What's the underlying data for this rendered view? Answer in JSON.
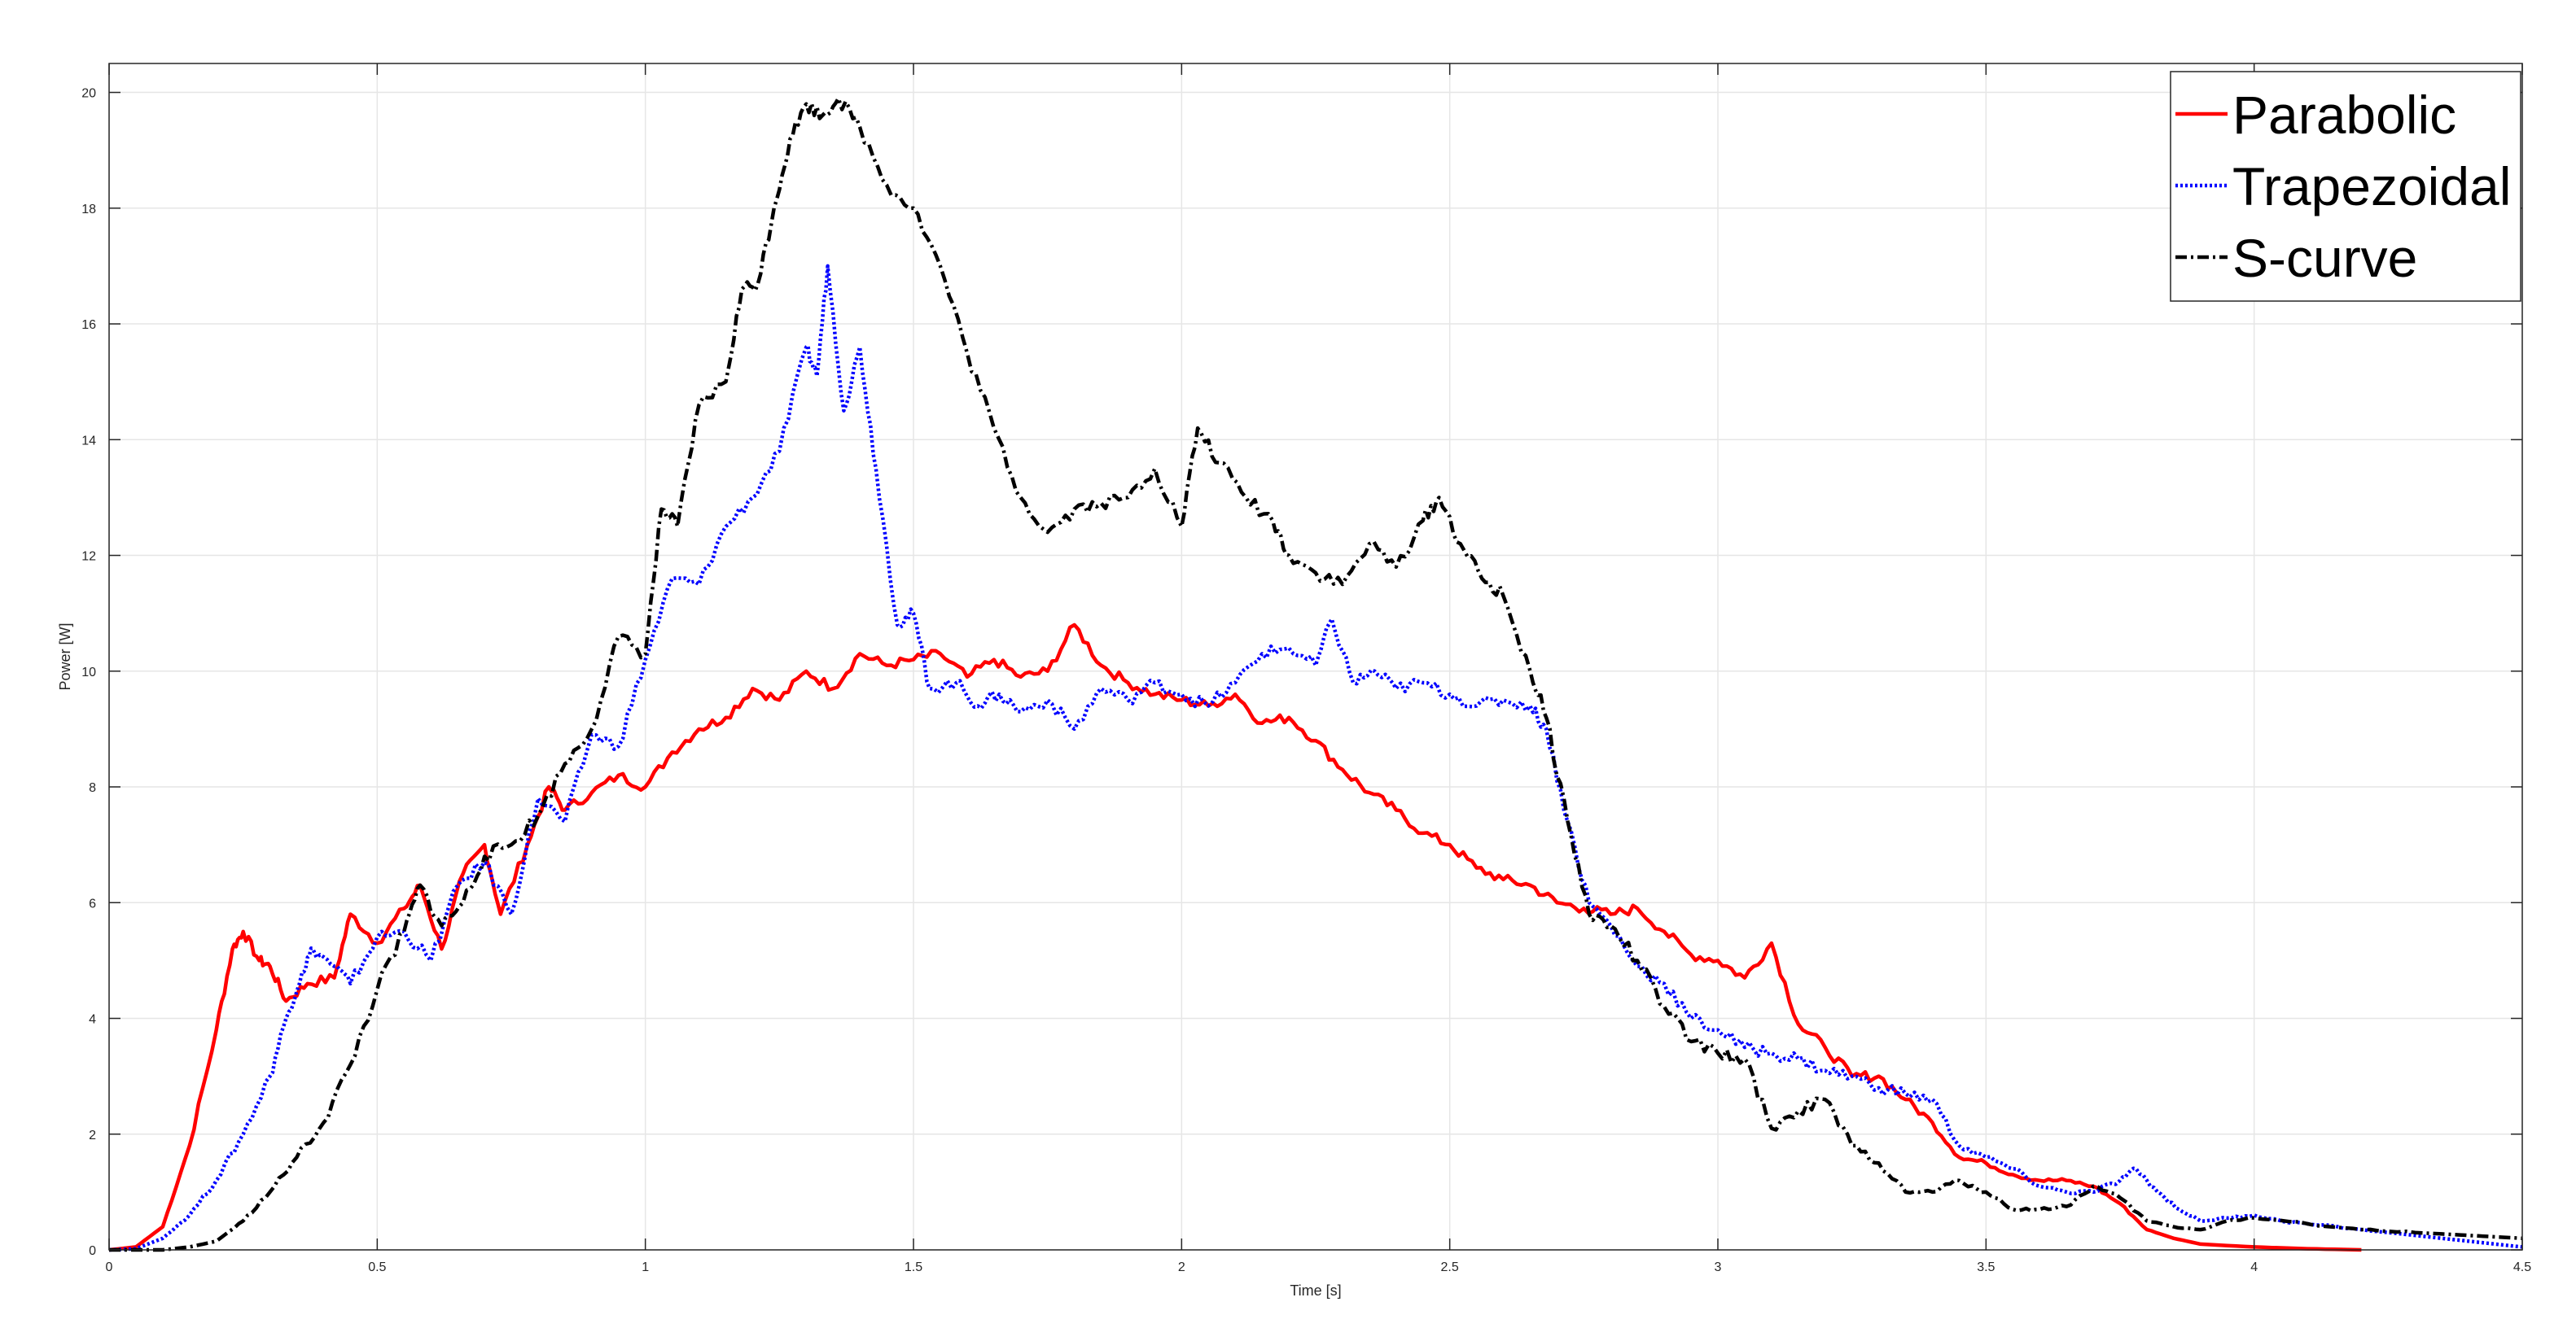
{
  "chart_data": {
    "type": "line",
    "title": "",
    "xlabel": "Time [s]",
    "ylabel": "Power [W]",
    "xlim": [
      0,
      4.5
    ],
    "ylim": [
      0,
      20.5
    ],
    "xticks": [
      "0",
      "0.5",
      "1",
      "1.5",
      "2",
      "2.5",
      "3",
      "3.5",
      "4",
      "4.5"
    ],
    "yticks": [
      "0",
      "2",
      "4",
      "6",
      "8",
      "10",
      "12",
      "14",
      "16",
      "18",
      "20"
    ],
    "grid": true,
    "legend_position": "top-right",
    "series": [
      {
        "name": "Parabolic",
        "color": "#ff0000",
        "style": "solid",
        "points": [
          [
            0,
            0
          ],
          [
            0.05,
            0.05
          ],
          [
            0.1,
            0.4
          ],
          [
            0.15,
            1.8
          ],
          [
            0.2,
            3.8
          ],
          [
            0.23,
            5.2
          ],
          [
            0.25,
            5.5
          ],
          [
            0.28,
            5.0
          ],
          [
            0.3,
            4.9
          ],
          [
            0.33,
            4.3
          ],
          [
            0.37,
            4.6
          ],
          [
            0.42,
            4.7
          ],
          [
            0.45,
            5.8
          ],
          [
            0.5,
            5.3
          ],
          [
            0.55,
            5.9
          ],
          [
            0.58,
            6.3
          ],
          [
            0.62,
            5.2
          ],
          [
            0.66,
            6.5
          ],
          [
            0.7,
            7.0
          ],
          [
            0.73,
            5.8
          ],
          [
            0.78,
            7.0
          ],
          [
            0.82,
            8.0
          ],
          [
            0.85,
            7.6
          ],
          [
            0.9,
            7.9
          ],
          [
            0.95,
            8.2
          ],
          [
            1.0,
            8.0
          ],
          [
            1.05,
            8.6
          ],
          [
            1.1,
            9.0
          ],
          [
            1.15,
            9.2
          ],
          [
            1.2,
            9.7
          ],
          [
            1.25,
            9.5
          ],
          [
            1.3,
            10.0
          ],
          [
            1.35,
            9.7
          ],
          [
            1.4,
            10.3
          ],
          [
            1.45,
            10.1
          ],
          [
            1.5,
            10.2
          ],
          [
            1.55,
            10.3
          ],
          [
            1.6,
            9.9
          ],
          [
            1.65,
            10.2
          ],
          [
            1.7,
            9.9
          ],
          [
            1.75,
            10.0
          ],
          [
            1.8,
            10.8
          ],
          [
            1.85,
            10.1
          ],
          [
            1.9,
            9.8
          ],
          [
            1.95,
            9.6
          ],
          [
            2.0,
            9.5
          ],
          [
            2.05,
            9.4
          ],
          [
            2.1,
            9.6
          ],
          [
            2.15,
            9.1
          ],
          [
            2.2,
            9.2
          ],
          [
            2.25,
            8.8
          ],
          [
            2.3,
            8.3
          ],
          [
            2.35,
            7.9
          ],
          [
            2.4,
            7.6
          ],
          [
            2.45,
            7.2
          ],
          [
            2.5,
            7.0
          ],
          [
            2.55,
            6.6
          ],
          [
            2.6,
            6.4
          ],
          [
            2.65,
            6.3
          ],
          [
            2.7,
            6.0
          ],
          [
            2.75,
            5.9
          ],
          [
            2.8,
            5.8
          ],
          [
            2.85,
            5.9
          ],
          [
            2.9,
            5.5
          ],
          [
            2.95,
            5.1
          ],
          [
            3.0,
            5.0
          ],
          [
            3.05,
            4.7
          ],
          [
            3.1,
            5.3
          ],
          [
            3.15,
            3.9
          ],
          [
            3.2,
            3.5
          ],
          [
            3.25,
            3.0
          ],
          [
            3.3,
            3.0
          ],
          [
            3.35,
            2.6
          ],
          [
            3.4,
            2.2
          ],
          [
            3.45,
            1.6
          ],
          [
            3.5,
            1.5
          ],
          [
            3.55,
            1.3
          ],
          [
            3.6,
            1.2
          ],
          [
            3.65,
            1.2
          ],
          [
            3.7,
            1.1
          ],
          [
            3.75,
            0.8
          ],
          [
            3.8,
            0.35
          ],
          [
            3.85,
            0.2
          ],
          [
            3.9,
            0.1
          ],
          [
            4.0,
            0.05
          ],
          [
            4.1,
            0.02
          ],
          [
            4.2,
            0.0
          ]
        ]
      },
      {
        "name": "Trapezoidal",
        "color": "#0000ff",
        "style": "dotted",
        "points": [
          [
            0,
            0
          ],
          [
            0.05,
            0.02
          ],
          [
            0.1,
            0.2
          ],
          [
            0.15,
            0.6
          ],
          [
            0.2,
            1.2
          ],
          [
            0.25,
            2.0
          ],
          [
            0.3,
            3.0
          ],
          [
            0.33,
            4.0
          ],
          [
            0.36,
            4.8
          ],
          [
            0.38,
            5.2
          ],
          [
            0.42,
            4.9
          ],
          [
            0.45,
            4.6
          ],
          [
            0.5,
            5.4
          ],
          [
            0.55,
            5.5
          ],
          [
            0.6,
            5.0
          ],
          [
            0.65,
            6.3
          ],
          [
            0.7,
            6.7
          ],
          [
            0.75,
            5.8
          ],
          [
            0.8,
            7.8
          ],
          [
            0.85,
            7.4
          ],
          [
            0.9,
            8.9
          ],
          [
            0.95,
            8.7
          ],
          [
            1.0,
            10.2
          ],
          [
            1.05,
            11.6
          ],
          [
            1.1,
            11.5
          ],
          [
            1.15,
            12.5
          ],
          [
            1.2,
            13.0
          ],
          [
            1.25,
            13.8
          ],
          [
            1.3,
            15.6
          ],
          [
            1.32,
            15.1
          ],
          [
            1.34,
            17.0
          ],
          [
            1.37,
            14.5
          ],
          [
            1.4,
            15.6
          ],
          [
            1.43,
            13.5
          ],
          [
            1.47,
            10.8
          ],
          [
            1.5,
            11.0
          ],
          [
            1.53,
            9.7
          ],
          [
            1.58,
            9.8
          ],
          [
            1.62,
            9.4
          ],
          [
            1.66,
            9.6
          ],
          [
            1.7,
            9.3
          ],
          [
            1.75,
            9.5
          ],
          [
            1.8,
            9.0
          ],
          [
            1.85,
            9.7
          ],
          [
            1.9,
            9.5
          ],
          [
            1.95,
            9.8
          ],
          [
            2.0,
            9.6
          ],
          [
            2.05,
            9.4
          ],
          [
            2.1,
            9.8
          ],
          [
            2.15,
            10.3
          ],
          [
            2.2,
            10.4
          ],
          [
            2.25,
            10.1
          ],
          [
            2.28,
            10.9
          ],
          [
            2.32,
            9.8
          ],
          [
            2.36,
            10.0
          ],
          [
            2.4,
            9.7
          ],
          [
            2.45,
            9.8
          ],
          [
            2.5,
            9.6
          ],
          [
            2.55,
            9.4
          ],
          [
            2.6,
            9.5
          ],
          [
            2.65,
            9.4
          ],
          [
            2.68,
            9.0
          ],
          [
            2.72,
            7.4
          ],
          [
            2.76,
            6.0
          ],
          [
            2.8,
            5.6
          ],
          [
            2.85,
            4.9
          ],
          [
            2.9,
            4.6
          ],
          [
            2.95,
            4.0
          ],
          [
            3.0,
            3.8
          ],
          [
            3.05,
            3.5
          ],
          [
            3.1,
            3.4
          ],
          [
            3.15,
            3.3
          ],
          [
            3.2,
            3.1
          ],
          [
            3.25,
            3.0
          ],
          [
            3.3,
            2.8
          ],
          [
            3.35,
            2.7
          ],
          [
            3.4,
            2.6
          ],
          [
            3.45,
            1.8
          ],
          [
            3.5,
            1.6
          ],
          [
            3.55,
            1.4
          ],
          [
            3.6,
            1.1
          ],
          [
            3.65,
            1.0
          ],
          [
            3.7,
            1.0
          ],
          [
            3.75,
            1.2
          ],
          [
            3.78,
            1.4
          ],
          [
            3.82,
            1.0
          ],
          [
            3.86,
            0.7
          ],
          [
            3.9,
            0.5
          ],
          [
            3.95,
            0.55
          ],
          [
            4.0,
            0.6
          ],
          [
            4.05,
            0.5
          ],
          [
            4.1,
            0.45
          ],
          [
            4.2,
            0.35
          ],
          [
            4.3,
            0.25
          ],
          [
            4.4,
            0.15
          ],
          [
            4.5,
            0.05
          ]
        ]
      },
      {
        "name": "S-curve",
        "color": "#000000",
        "style": "dashdot",
        "points": [
          [
            0,
            0
          ],
          [
            0.1,
            0.0
          ],
          [
            0.15,
            0.05
          ],
          [
            0.2,
            0.15
          ],
          [
            0.25,
            0.5
          ],
          [
            0.3,
            1.0
          ],
          [
            0.35,
            1.6
          ],
          [
            0.4,
            2.2
          ],
          [
            0.45,
            3.2
          ],
          [
            0.5,
            4.5
          ],
          [
            0.55,
            5.5
          ],
          [
            0.58,
            6.3
          ],
          [
            0.62,
            5.6
          ],
          [
            0.66,
            6.0
          ],
          [
            0.7,
            6.8
          ],
          [
            0.75,
            7.0
          ],
          [
            0.8,
            7.5
          ],
          [
            0.85,
            8.4
          ],
          [
            0.9,
            9.0
          ],
          [
            0.95,
            10.6
          ],
          [
            1.0,
            10.3
          ],
          [
            1.03,
            12.8
          ],
          [
            1.06,
            12.5
          ],
          [
            1.1,
            14.6
          ],
          [
            1.15,
            15.0
          ],
          [
            1.18,
            16.6
          ],
          [
            1.21,
            16.7
          ],
          [
            1.24,
            18.0
          ],
          [
            1.27,
            19.2
          ],
          [
            1.3,
            19.8
          ],
          [
            1.33,
            19.6
          ],
          [
            1.36,
            19.9
          ],
          [
            1.4,
            19.4
          ],
          [
            1.45,
            18.4
          ],
          [
            1.5,
            18.0
          ],
          [
            1.55,
            17.0
          ],
          [
            1.6,
            15.5
          ],
          [
            1.65,
            14.2
          ],
          [
            1.7,
            13.0
          ],
          [
            1.75,
            12.4
          ],
          [
            1.8,
            12.8
          ],
          [
            1.85,
            12.9
          ],
          [
            1.9,
            13.0
          ],
          [
            1.95,
            13.5
          ],
          [
            2.0,
            12.5
          ],
          [
            2.03,
            14.2
          ],
          [
            2.07,
            13.6
          ],
          [
            2.12,
            13.0
          ],
          [
            2.17,
            12.6
          ],
          [
            2.2,
            12.0
          ],
          [
            2.25,
            11.7
          ],
          [
            2.3,
            11.5
          ],
          [
            2.35,
            12.2
          ],
          [
            2.4,
            11.8
          ],
          [
            2.45,
            12.6
          ],
          [
            2.48,
            13.0
          ],
          [
            2.52,
            12.2
          ],
          [
            2.56,
            11.6
          ],
          [
            2.6,
            11.3
          ],
          [
            2.65,
            10.0
          ],
          [
            2.68,
            9.2
          ],
          [
            2.72,
            7.4
          ],
          [
            2.76,
            5.8
          ],
          [
            2.8,
            5.6
          ],
          [
            2.85,
            5.0
          ],
          [
            2.9,
            4.2
          ],
          [
            2.95,
            3.6
          ],
          [
            3.0,
            3.4
          ],
          [
            3.05,
            3.3
          ],
          [
            3.1,
            2.1
          ],
          [
            3.15,
            2.4
          ],
          [
            3.2,
            2.6
          ],
          [
            3.25,
            1.8
          ],
          [
            3.3,
            1.5
          ],
          [
            3.35,
            1.0
          ],
          [
            3.4,
            1.0
          ],
          [
            3.45,
            1.2
          ],
          [
            3.5,
            1.0
          ],
          [
            3.55,
            0.7
          ],
          [
            3.6,
            0.7
          ],
          [
            3.65,
            0.75
          ],
          [
            3.7,
            1.1
          ],
          [
            3.75,
            0.9
          ],
          [
            3.8,
            0.5
          ],
          [
            3.85,
            0.4
          ],
          [
            3.9,
            0.35
          ],
          [
            3.95,
            0.5
          ],
          [
            4.0,
            0.55
          ],
          [
            4.1,
            0.45
          ],
          [
            4.2,
            0.35
          ],
          [
            4.3,
            0.3
          ],
          [
            4.4,
            0.25
          ],
          [
            4.5,
            0.2
          ]
        ]
      }
    ]
  }
}
